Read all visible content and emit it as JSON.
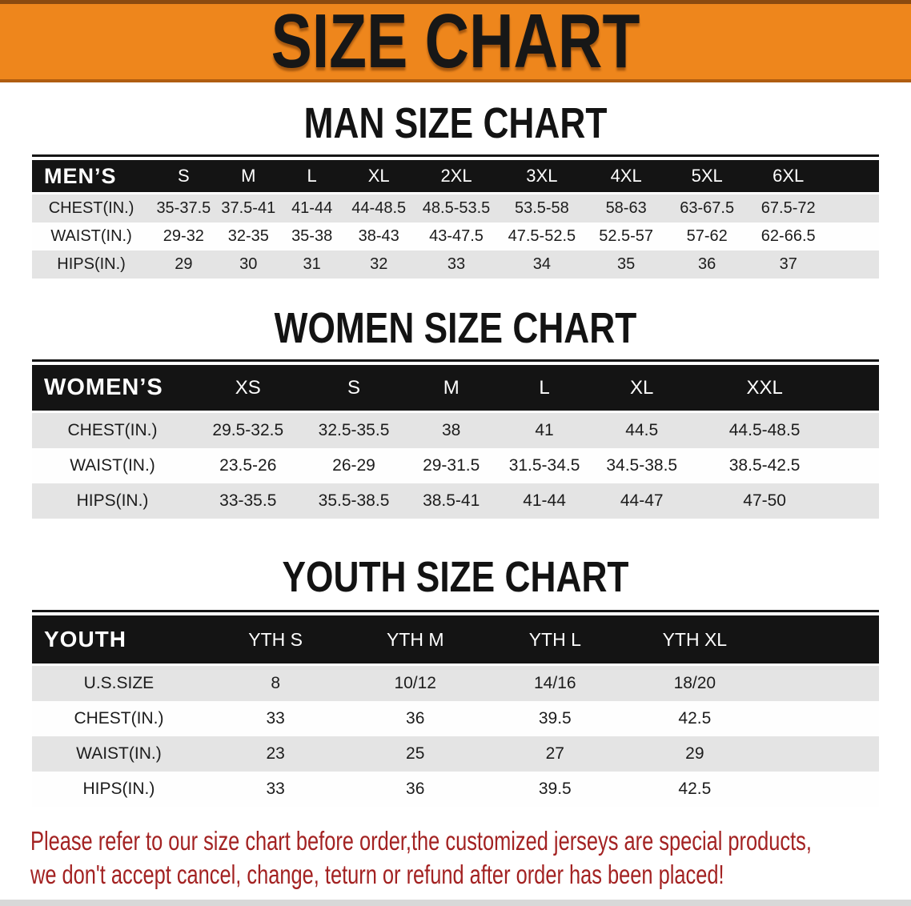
{
  "banner": {
    "title": "SIZE CHART",
    "bg_color": "#ee861c",
    "border_top_color": "#8a4a10",
    "border_bottom_color": "#b05d10",
    "text_color": "#171717"
  },
  "men": {
    "heading": "MAN SIZE CHART",
    "category_label": "MEN’S",
    "sizes": [
      "S",
      "M",
      "L",
      "XL",
      "2XL",
      "3XL",
      "4XL",
      "5XL",
      "6XL"
    ],
    "rows": [
      {
        "label": "CHEST(IN.)",
        "values": [
          "35-37.5",
          "37.5-41",
          "41-44",
          "44-48.5",
          "48.5-53.5",
          "53.5-58",
          "58-63",
          "63-67.5",
          "67.5-72"
        ]
      },
      {
        "label": "WAIST(IN.)",
        "values": [
          "29-32",
          "32-35",
          "35-38",
          "38-43",
          "43-47.5",
          "47.5-52.5",
          "52.5-57",
          "57-62",
          "62-66.5"
        ]
      },
      {
        "label": "HIPS(IN.)",
        "values": [
          "29",
          "30",
          "31",
          "32",
          "33",
          "34",
          "35",
          "36",
          "37"
        ]
      }
    ]
  },
  "women": {
    "heading": "WOMEN SIZE CHART",
    "category_label": "WOMEN’S",
    "sizes": [
      "XS",
      "S",
      "M",
      "L",
      "XL",
      "XXL"
    ],
    "rows": [
      {
        "label": "CHEST(IN.)",
        "values": [
          "29.5-32.5",
          "32.5-35.5",
          "38",
          "41",
          "44.5",
          "44.5-48.5"
        ]
      },
      {
        "label": "WAIST(IN.)",
        "values": [
          "23.5-26",
          "26-29",
          "29-31.5",
          "31.5-34.5",
          "34.5-38.5",
          "38.5-42.5"
        ]
      },
      {
        "label": "HIPS(IN.)",
        "values": [
          "33-35.5",
          "35.5-38.5",
          "38.5-41",
          "41-44",
          "44-47",
          "47-50"
        ]
      }
    ]
  },
  "youth": {
    "heading": "YOUTH SIZE CHART",
    "category_label": "YOUTH",
    "sizes": [
      "YTH S",
      "YTH M",
      "YTH L",
      "YTH XL"
    ],
    "rows": [
      {
        "label": "U.S.SIZE",
        "values": [
          "8",
          "10/12",
          "14/16",
          "18/20"
        ]
      },
      {
        "label": "CHEST(IN.)",
        "values": [
          "33",
          "36",
          "39.5",
          "42.5"
        ]
      },
      {
        "label": "WAIST(IN.)",
        "values": [
          "23",
          "25",
          "27",
          "29"
        ]
      },
      {
        "label": "HIPS(IN.)",
        "values": [
          "33",
          "36",
          "39.5",
          "42.5"
        ]
      }
    ]
  },
  "disclaimer": {
    "line1": "Please refer to our size chart before order,the customized jerseys are special products,",
    "line2": "we don't accept cancel, change, teturn or refund after order has been placed!",
    "text_color": "#a32222"
  },
  "colors": {
    "table_header_bar": "#141414",
    "row_alt_gray": "#e4e4e4",
    "bottom_strip": "#d8d8d8"
  }
}
